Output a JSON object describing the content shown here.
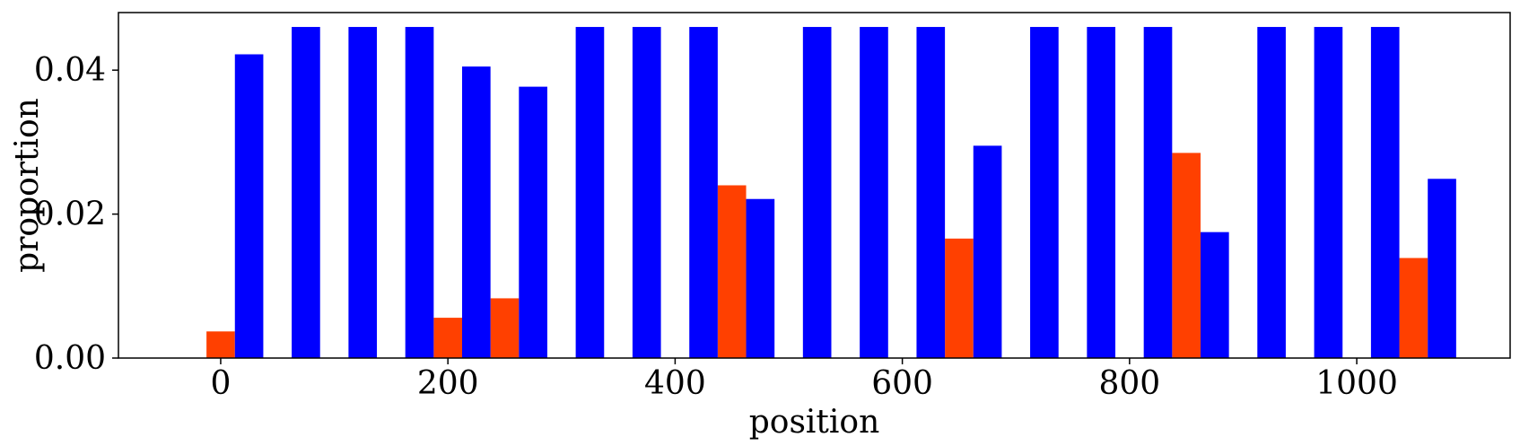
{
  "chart_data": {
    "type": "bar",
    "xlabel": "position",
    "ylabel": "proportion",
    "xlim": [
      -90,
      1135
    ],
    "ylim": [
      0,
      0.048
    ],
    "xticks": [
      0,
      200,
      400,
      600,
      800,
      1000
    ],
    "yticks": [
      0.0,
      0.02,
      0.04
    ],
    "xtick_labels": [
      "0",
      "200",
      "400",
      "600",
      "800",
      "1000"
    ],
    "ytick_labels": [
      "0.00",
      "0.02",
      "0.04"
    ],
    "bar_width": 25,
    "grid": false,
    "legend": "none",
    "series": [
      {
        "color": "#ff4000",
        "x": [
          0,
          200,
          250,
          450,
          650,
          850,
          1050
        ],
        "values": [
          0.0037,
          0.0056,
          0.0083,
          0.024,
          0.0166,
          0.0285,
          0.0139
        ]
      },
      {
        "color": "#0000ff",
        "x": [
          25,
          75,
          125,
          175,
          225,
          275,
          325,
          375,
          425,
          475,
          525,
          575,
          625,
          675,
          725,
          775,
          825,
          875,
          925,
          975,
          1025,
          1075
        ],
        "values": [
          0.0422,
          0.046,
          0.046,
          0.046,
          0.0405,
          0.0377,
          0.046,
          0.046,
          0.046,
          0.0221,
          0.046,
          0.046,
          0.046,
          0.0295,
          0.046,
          0.046,
          0.046,
          0.0175,
          0.046,
          0.046,
          0.046,
          0.0249
        ]
      }
    ]
  }
}
